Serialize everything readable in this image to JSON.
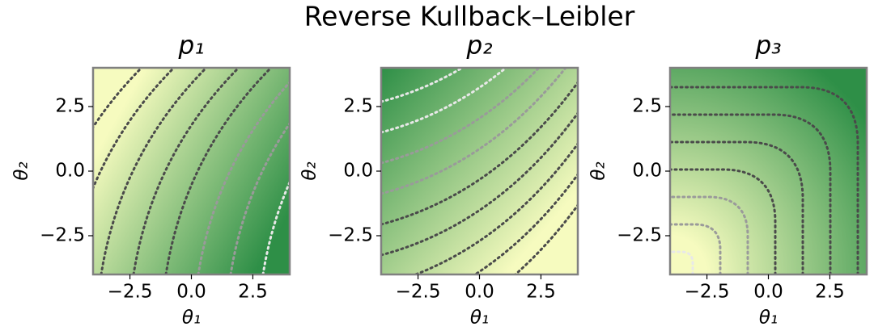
{
  "title": "Reverse Kullback–Leibler",
  "chart_data": [
    {
      "type": "contour",
      "title": "p₁",
      "xlabel": "θ₁",
      "ylabel": "θ₂",
      "xlim": [
        -4,
        4
      ],
      "ylim": [
        -4,
        4
      ],
      "xticks": [
        {
          "value": -2.5,
          "label": "−2.5"
        },
        {
          "value": 0,
          "label": "0.0"
        },
        {
          "value": 2.5,
          "label": "2.5"
        }
      ],
      "yticks": [
        {
          "value": -2.5,
          "label": "−2.5"
        },
        {
          "value": 0,
          "label": "0.0"
        },
        {
          "value": 2.5,
          "label": "2.5"
        }
      ],
      "colors": [
        "#f6fbbf",
        "#2e8f47"
      ]
    },
    {
      "type": "contour",
      "title": "p₂",
      "xlabel": "θ₁",
      "ylabel": "θ₂",
      "xlim": [
        -4,
        4
      ],
      "ylim": [
        -4,
        4
      ],
      "xticks": [
        {
          "value": -2.5,
          "label": "−2.5"
        },
        {
          "value": 0,
          "label": "0.0"
        },
        {
          "value": 2.5,
          "label": "2.5"
        }
      ],
      "yticks": [
        {
          "value": -2.5,
          "label": "−2.5"
        },
        {
          "value": 0,
          "label": "0.0"
        },
        {
          "value": 2.5,
          "label": "2.5"
        }
      ],
      "colors": [
        "#f6fbbf",
        "#2e8f47"
      ]
    },
    {
      "type": "contour",
      "title": "p₃",
      "xlabel": "θ₁",
      "ylabel": "θ₂",
      "xlim": [
        -4,
        4
      ],
      "ylim": [
        -4,
        4
      ],
      "xticks": [
        {
          "value": -2.5,
          "label": "−2.5"
        },
        {
          "value": 0,
          "label": "0.0"
        },
        {
          "value": 2.5,
          "label": "2.5"
        }
      ],
      "yticks": [
        {
          "value": -2.5,
          "label": "−2.5"
        },
        {
          "value": 0,
          "label": "0.0"
        },
        {
          "value": 2.5,
          "label": "2.5"
        }
      ],
      "colors": [
        "#f6fbbf",
        "#2e8f47"
      ]
    }
  ]
}
